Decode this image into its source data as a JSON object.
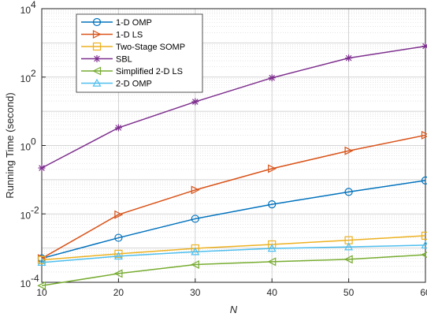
{
  "chart_data": {
    "type": "line",
    "title": "",
    "xlabel": "N",
    "ylabel": "Running Time (second)",
    "x": [
      10,
      20,
      30,
      40,
      50,
      60
    ],
    "xlim": [
      10,
      60
    ],
    "ylim": [
      0.0001,
      10000
    ],
    "yscale": "log",
    "x_ticks": [
      "10",
      "20",
      "30",
      "40",
      "50",
      "60"
    ],
    "y_ticks": [
      {
        "base": "10",
        "exp": "-4",
        "value": 0.0001
      },
      {
        "base": "10",
        "exp": "-2",
        "value": 0.01
      },
      {
        "base": "10",
        "exp": "0",
        "value": 1
      },
      {
        "base": "10",
        "exp": "2",
        "value": 100
      },
      {
        "base": "10",
        "exp": "4",
        "value": 10000
      }
    ],
    "grid": true,
    "legend_position": "top-left",
    "series": [
      {
        "name": "1-D OMP",
        "color": "#0072BD",
        "marker": "circle",
        "values": [
          0.0005,
          0.002,
          0.0072,
          0.019,
          0.044,
          0.095
        ]
      },
      {
        "name": "1-D LS",
        "color": "#D95319",
        "marker": "triangle-right",
        "values": [
          0.0005,
          0.0095,
          0.05,
          0.21,
          0.7,
          2.0
        ]
      },
      {
        "name": "Two-Stage SOMP",
        "color": "#EDB120",
        "marker": "square",
        "values": [
          0.00045,
          0.00068,
          0.00098,
          0.00128,
          0.0017,
          0.0023
        ]
      },
      {
        "name": "SBL",
        "color": "#7E2F8E",
        "marker": "asterisk",
        "values": [
          0.22,
          3.3,
          19,
          95,
          360,
          800
        ]
      },
      {
        "name": "Simplified 2-D LS",
        "color": "#77AC30",
        "marker": "triangle-left",
        "values": [
          8e-05,
          0.00018,
          0.00033,
          0.0004,
          0.00047,
          0.00064
        ]
      },
      {
        "name": "2-D OMP",
        "color": "#4DBEEE",
        "marker": "triangle-up",
        "values": [
          0.00038,
          0.00058,
          0.00078,
          0.00098,
          0.00108,
          0.00122
        ]
      }
    ]
  }
}
